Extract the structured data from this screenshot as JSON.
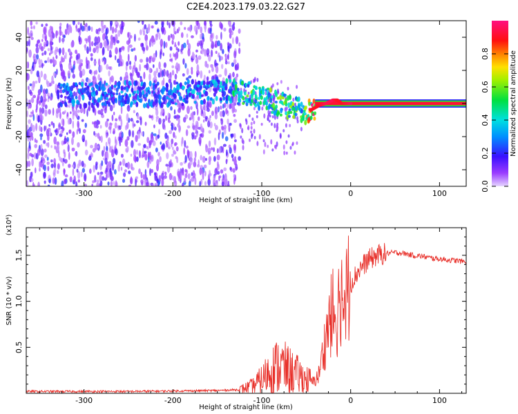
{
  "title": "C2E4.2023.179.03.22.G27",
  "chart_data": [
    {
      "type": "heatmap",
      "xlabel": "Height of straight line (km)",
      "ylabel": "Frequency (Hz)",
      "xlim": [
        -365,
        130
      ],
      "ylim": [
        -50,
        50
      ],
      "x_ticks": [
        -300,
        -200,
        -100,
        0,
        100
      ],
      "x_tick_labels": [
        "-300",
        "-200",
        "-100",
        "0",
        "100"
      ],
      "y_ticks": [
        -40,
        -20,
        0,
        20,
        40
      ],
      "y_tick_labels": [
        "-40",
        "-20",
        "0",
        "20",
        "40"
      ],
      "colorbar": {
        "label": "Normalized spectral amplitude",
        "range": [
          0,
          1
        ],
        "ticks": [
          0.0,
          0.2,
          0.4,
          0.6,
          0.8
        ],
        "tick_labels": [
          "0.0",
          "0.2",
          "0.4",
          "0.6",
          "0.8"
        ],
        "colormap": "rainbow (purple → blue → cyan → green → yellow → red → magenta)"
      },
      "ridge": {
        "x": [
          -330,
          -250,
          -210,
          -180,
          -150,
          -130,
          -110,
          -95,
          -80,
          -65,
          -55,
          -45,
          -35,
          -28,
          -20,
          -15,
          -10,
          0,
          130
        ],
        "freq": [
          5,
          6,
          5,
          7,
          8,
          7,
          5,
          2,
          0,
          -3,
          -5,
          -4,
          -1,
          0,
          2,
          2,
          0,
          0,
          0
        ],
        "amplitude": [
          0.3,
          0.3,
          0.3,
          0.35,
          0.35,
          0.45,
          0.55,
          0.55,
          0.55,
          0.55,
          0.5,
          0.9,
          0.9,
          0.95,
          0.95,
          0.9,
          0.9,
          0.95,
          0.95
        ]
      },
      "noise_region": {
        "dense_x_range": [
          -365,
          -125
        ],
        "dense_freq_range": [
          -50,
          50
        ],
        "amplitude": 0.15
      }
    },
    {
      "type": "line",
      "xlabel": "Height of straight line (km)",
      "ylabel": "SNR (10 * v/v)",
      "y_scale_note": "(x10⁴)",
      "xlim": [
        -365,
        130
      ],
      "ylim": [
        0,
        1.8
      ],
      "x_ticks": [
        -300,
        -200,
        -100,
        0,
        100
      ],
      "x_tick_labels": [
        "-300",
        "-200",
        "-100",
        "0",
        "100"
      ],
      "y_ticks": [
        0.5,
        1.0,
        1.5
      ],
      "y_tick_labels": [
        "0.5",
        "1.0",
        "1.5"
      ],
      "series": [
        {
          "color": "#e8302a",
          "x": [
            -365,
            -250,
            -150,
            -125,
            -110,
            -100,
            -90,
            -80,
            -70,
            -60,
            -50,
            -42,
            -36,
            -30,
            -25,
            -20,
            -15,
            -12,
            -8,
            -4,
            0,
            10,
            20,
            30,
            40,
            50,
            60,
            70,
            80,
            90,
            100,
            110,
            120,
            130
          ],
          "y": [
            0.02,
            0.02,
            0.03,
            0.04,
            0.08,
            0.15,
            0.25,
            0.3,
            0.25,
            0.2,
            0.15,
            0.12,
            0.2,
            0.5,
            0.75,
            0.9,
            0.85,
            1.1,
            1.05,
            1.15,
            1.2,
            1.35,
            1.45,
            1.5,
            1.52,
            1.53,
            1.52,
            1.5,
            1.49,
            1.47,
            1.46,
            1.45,
            1.44,
            1.43
          ]
        }
      ]
    }
  ]
}
